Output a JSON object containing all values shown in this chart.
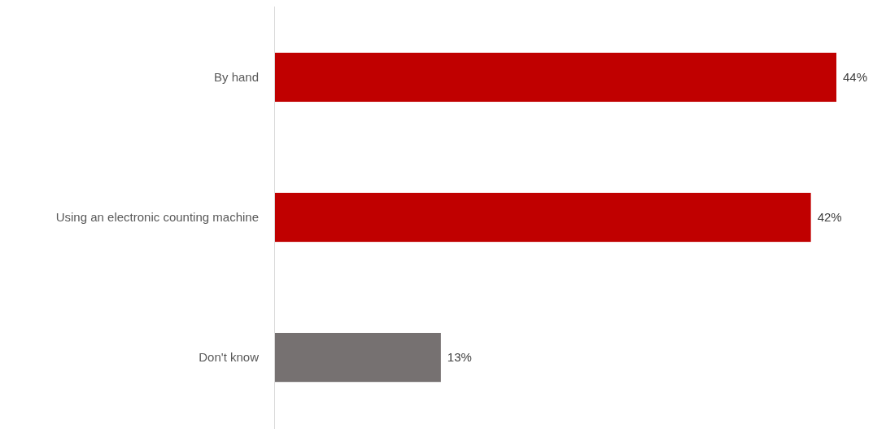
{
  "chart_data": {
    "type": "bar",
    "orientation": "horizontal",
    "categories": [
      "By hand",
      "Using an electronic counting machine",
      "Don't know"
    ],
    "values": [
      44,
      42,
      13
    ],
    "colors": [
      "#c00000",
      "#c00000",
      "#767171"
    ],
    "value_labels": [
      "44%",
      "42%",
      "13%"
    ]
  }
}
